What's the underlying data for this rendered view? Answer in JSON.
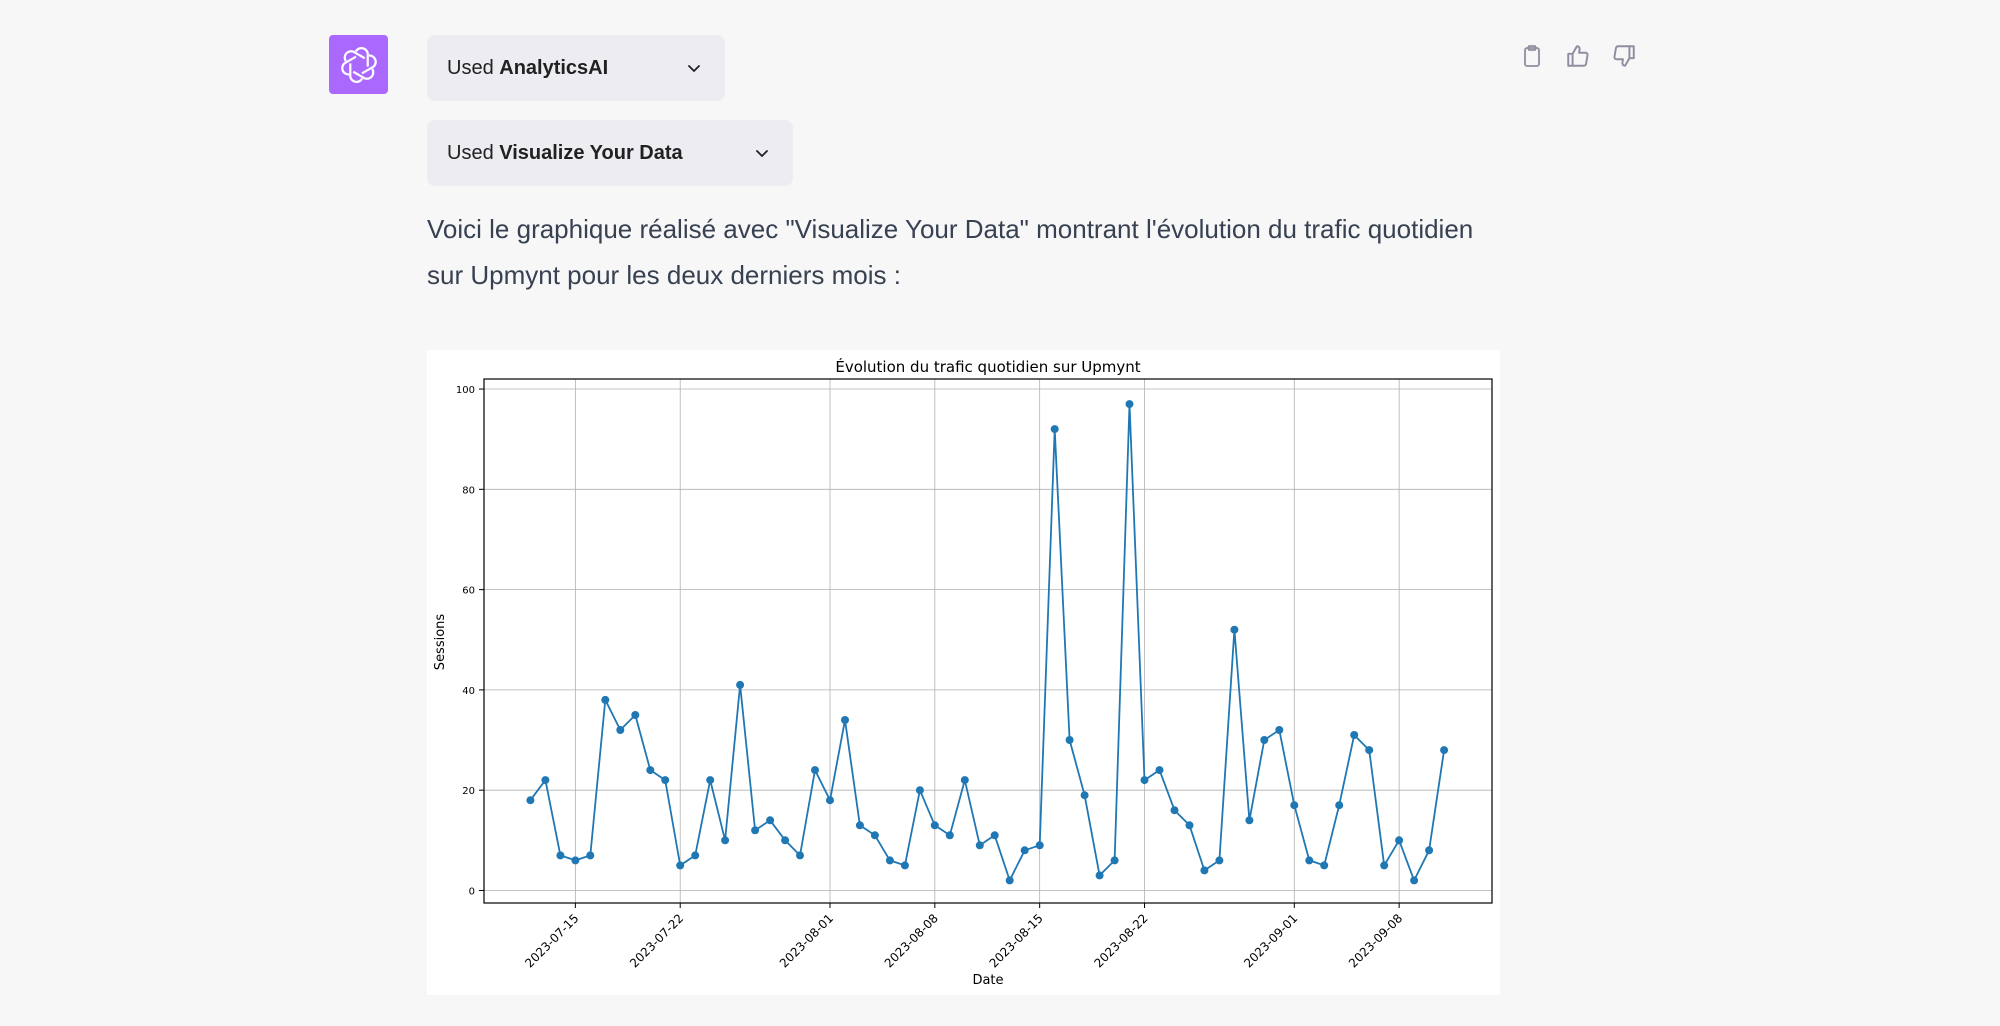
{
  "assistant": {
    "avatar_icon": "openai-logo-icon",
    "avatar_color": "#ab68ff"
  },
  "tools": [
    {
      "prefix": "Used ",
      "name": "AnalyticsAI"
    },
    {
      "prefix": "Used ",
      "name": "Visualize Your Data"
    }
  ],
  "message": {
    "text": "Voici le graphique réalisé avec \"Visualize Your Data\" montrant l'évolution du trafic quotidien sur Upmynt pour les deux derniers mois :"
  },
  "actions": [
    "clipboard-icon",
    "thumbs-up-icon",
    "thumbs-down-icon"
  ],
  "chart_data": {
    "type": "line",
    "title": "Évolution du trafic quotidien sur Upmynt",
    "xlabel": "Date",
    "ylabel": "Sessions",
    "x_start": "2023-07-12",
    "x_ticks": [
      "2023-07-15",
      "2023-07-22",
      "2023-08-01",
      "2023-08-08",
      "2023-08-15",
      "2023-08-22",
      "2023-09-01",
      "2023-09-08"
    ],
    "y_ticks": [
      0,
      20,
      40,
      60,
      80,
      100
    ],
    "ylim": [
      -2.5,
      102
    ],
    "grid": true,
    "color": "#1f77b4",
    "x": [
      "2023-07-12",
      "2023-07-13",
      "2023-07-14",
      "2023-07-15",
      "2023-07-16",
      "2023-07-17",
      "2023-07-18",
      "2023-07-19",
      "2023-07-20",
      "2023-07-21",
      "2023-07-22",
      "2023-07-23",
      "2023-07-24",
      "2023-07-25",
      "2023-07-26",
      "2023-07-27",
      "2023-07-28",
      "2023-07-29",
      "2023-07-30",
      "2023-07-31",
      "2023-08-01",
      "2023-08-02",
      "2023-08-03",
      "2023-08-04",
      "2023-08-05",
      "2023-08-06",
      "2023-08-07",
      "2023-08-08",
      "2023-08-09",
      "2023-08-10",
      "2023-08-11",
      "2023-08-12",
      "2023-08-13",
      "2023-08-14",
      "2023-08-15",
      "2023-08-16",
      "2023-08-17",
      "2023-08-18",
      "2023-08-19",
      "2023-08-20",
      "2023-08-21",
      "2023-08-22",
      "2023-08-23",
      "2023-08-24",
      "2023-08-25",
      "2023-08-26",
      "2023-08-27",
      "2023-08-28",
      "2023-08-29",
      "2023-08-30",
      "2023-08-31",
      "2023-09-01",
      "2023-09-02",
      "2023-09-03",
      "2023-09-04",
      "2023-09-05",
      "2023-09-06",
      "2023-09-07",
      "2023-09-08",
      "2023-09-09",
      "2023-09-10",
      "2023-09-11"
    ],
    "values": [
      18,
      22,
      7,
      6,
      7,
      38,
      32,
      35,
      24,
      22,
      5,
      7,
      22,
      10,
      41,
      12,
      14,
      10,
      7,
      24,
      18,
      34,
      13,
      11,
      6,
      5,
      20,
      13,
      11,
      22,
      9,
      11,
      2,
      8,
      9,
      92,
      30,
      19,
      3,
      6,
      97,
      22,
      24,
      16,
      13,
      4,
      6,
      52,
      14,
      30,
      32,
      17,
      6,
      5,
      17,
      31,
      28,
      5,
      10,
      2,
      8,
      28
    ]
  }
}
